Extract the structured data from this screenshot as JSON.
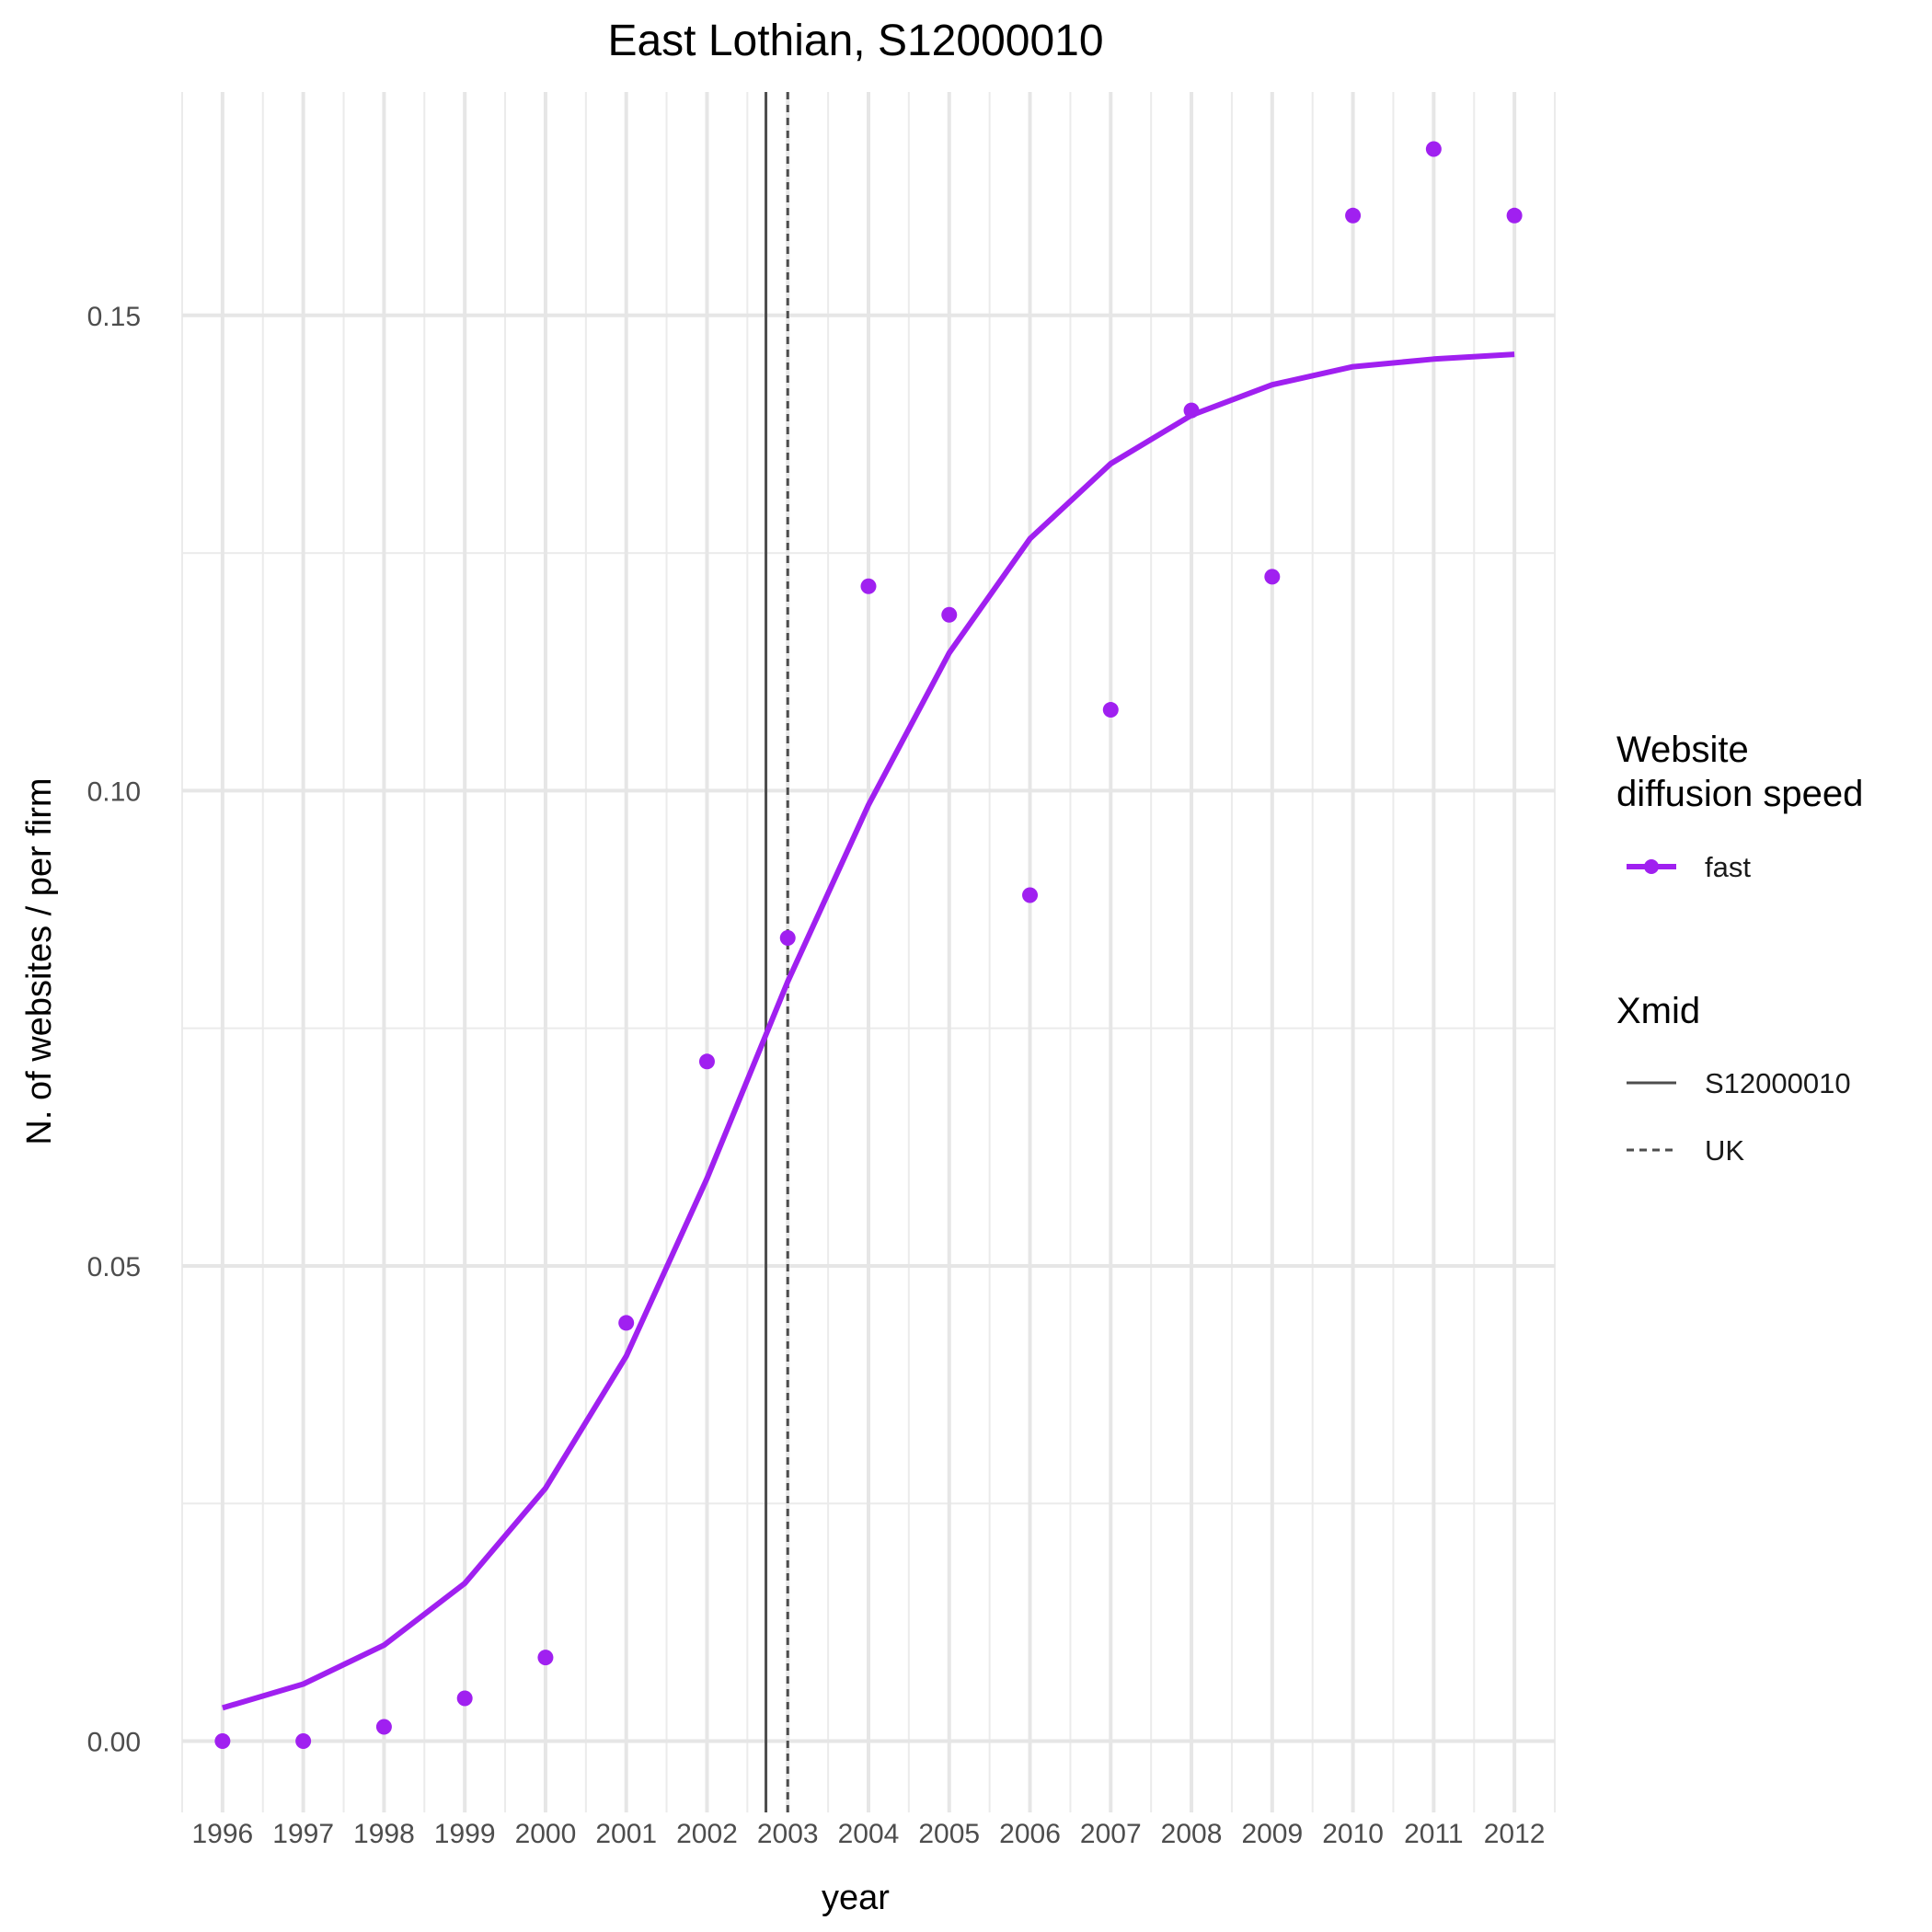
{
  "chart_data": {
    "type": "scatter",
    "title": "East Lothian, S12000010",
    "xlabel": "year",
    "ylabel": "N. of websites / per firm",
    "x": [
      1996,
      1997,
      1998,
      1999,
      2000,
      2001,
      2002,
      2003,
      2004,
      2005,
      2006,
      2007,
      2008,
      2009,
      2010,
      2011,
      2012
    ],
    "xlim": [
      1995.5,
      2012.5
    ],
    "ylim": [
      -0.0075,
      0.1735
    ],
    "y_ticks": [
      0.0,
      0.05,
      0.1,
      0.15
    ],
    "y_tick_labels": [
      "0.00",
      "0.05",
      "0.10",
      "0.15"
    ],
    "grid": true,
    "legend_position": "right",
    "series": [
      {
        "name": "fast",
        "kind": "points",
        "color": "#a020f0",
        "values": [
          0.0,
          0.0,
          0.0015,
          0.0045,
          0.0088,
          0.044,
          0.0715,
          0.0845,
          0.1215,
          0.1185,
          0.089,
          0.1085,
          0.14,
          0.1225,
          0.1605,
          0.1675,
          0.1605
        ]
      },
      {
        "name": "fast",
        "kind": "fitted-line",
        "color": "#a020f0",
        "values": [
          0.0035,
          0.006,
          0.0101,
          0.0166,
          0.0266,
          0.0405,
          0.0592,
          0.0799,
          0.0985,
          0.1145,
          0.1265,
          0.1344,
          0.1395,
          0.1427,
          0.1446,
          0.1454,
          0.1459
        ]
      }
    ],
    "vlines": [
      {
        "name": "S12000010",
        "x": 2002.73,
        "style": "solid",
        "color": "#4d4d4d"
      },
      {
        "name": "UK",
        "x": 2003.0,
        "style": "dashed",
        "color": "#4d4d4d"
      }
    ],
    "legend": {
      "groups": [
        {
          "title": [
            "Website",
            "diffusion speed"
          ],
          "items": [
            {
              "label": "fast",
              "style": "point-line",
              "color": "#a020f0"
            }
          ]
        },
        {
          "title": [
            "Xmid"
          ],
          "items": [
            {
              "label": "S12000010",
              "style": "solid",
              "color": "#4d4d4d"
            },
            {
              "label": "UK",
              "style": "dashed",
              "color": "#4d4d4d"
            }
          ]
        }
      ]
    }
  }
}
